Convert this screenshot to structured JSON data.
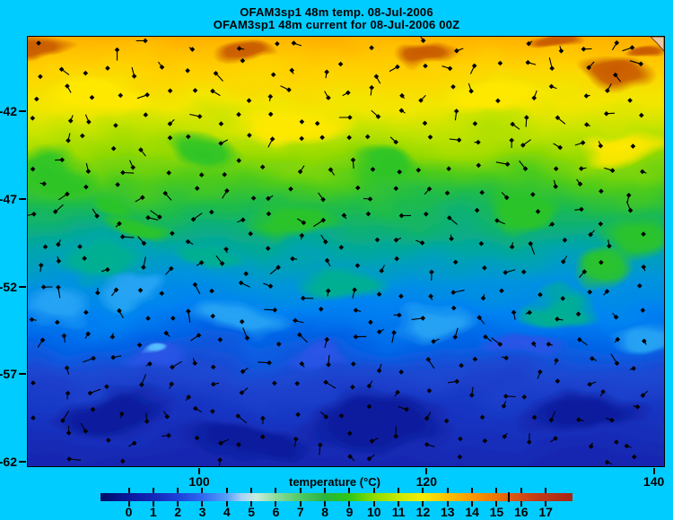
{
  "titles": {
    "line1": "OFAM3sp1 48m temp. 08-Jul-2006",
    "line2": "OFAM3sp1 48m current for 08-Jul-2006 00Z"
  },
  "background_color": "#00ccff",
  "map": {
    "y_axis": {
      "ticks": [
        {
          "label": "-42",
          "lat": -42
        },
        {
          "label": "-47",
          "lat": -47
        },
        {
          "label": "-52",
          "lat": -52
        },
        {
          "label": "-57",
          "lat": -57
        },
        {
          "label": "-62",
          "lat": -62
        }
      ]
    },
    "x_axis": {
      "ticks": [
        {
          "label": "100",
          "lon": 100
        },
        {
          "label": "120",
          "lon": 120
        },
        {
          "label": "140",
          "lon": 140
        }
      ]
    },
    "land_color": "#e8c8a0"
  },
  "colorbar": {
    "label": "temperature (°C)",
    "tick_labels": [
      "0",
      "1",
      "2",
      "3",
      "4",
      "5",
      "6",
      "7",
      "8",
      "9",
      "10",
      "11",
      "12",
      "13",
      "14",
      "15",
      "16",
      "17"
    ],
    "marker_value": 15.5,
    "value_range": [
      -1.2,
      18.1
    ],
    "stops": [
      {
        "v": -1.15,
        "c": "#000d66"
      },
      {
        "v": 0,
        "c": "#0a1a9c"
      },
      {
        "v": 1,
        "c": "#1428b8"
      },
      {
        "v": 2,
        "c": "#1e40d8"
      },
      {
        "v": 3,
        "c": "#2e68f0"
      },
      {
        "v": 4,
        "c": "#55a0f8"
      },
      {
        "v": 4.6,
        "c": "#a8d0f8"
      },
      {
        "v": 5.2,
        "c": "#c8ecdc"
      },
      {
        "v": 6,
        "c": "#8cdc9c"
      },
      {
        "v": 7,
        "c": "#50c864"
      },
      {
        "v": 8,
        "c": "#28b43c"
      },
      {
        "v": 9,
        "c": "#30c814"
      },
      {
        "v": 10,
        "c": "#8cdc00"
      },
      {
        "v": 11,
        "c": "#c8e800"
      },
      {
        "v": 12,
        "c": "#f8ec00"
      },
      {
        "v": 13,
        "c": "#fcc000"
      },
      {
        "v": 14,
        "c": "#fc9800"
      },
      {
        "v": 15,
        "c": "#ec7400"
      },
      {
        "v": 15.5,
        "c": "#e05c10"
      },
      {
        "v": 16.5,
        "c": "#c83c14"
      },
      {
        "v": 18,
        "c": "#a82814"
      }
    ]
  },
  "chart_data": {
    "type": "heatmap",
    "title": "OFAM3sp1 48m temp. 08-Jul-2006",
    "subtitle": "OFAM3sp1 48m current for 08-Jul-2006 00Z",
    "x_ticks": [
      100,
      120,
      140
    ],
    "x_range_lon_east": [
      84.9,
      141.1
    ],
    "y_ticks": [
      -42,
      -47,
      -52,
      -57,
      -62
    ],
    "y_range_lat": [
      -62.3,
      -37.7
    ],
    "colorbar": {
      "label": "temperature (°C)",
      "ticks": [
        0,
        1,
        2,
        3,
        4,
        5,
        6,
        7,
        8,
        9,
        10,
        11,
        12,
        13,
        14,
        15,
        16,
        17
      ],
      "range": [
        -1.2,
        18.1
      ],
      "marker_value": 15.5
    },
    "approx_zonal_mean_temp_by_lat": {
      "-38": 15.5,
      "-40": 13.5,
      "-42": 12,
      "-44": 10.5,
      "-46": 9,
      "-48": 7.5,
      "-50": 6,
      "-52": 4.5,
      "-54": 3.5,
      "-56": 3,
      "-58": 2.5,
      "-60": 2.2,
      "-62": 2
    },
    "field_description": "Sea temperature at 48m: warm (15-17C, orange/brown) in the north grading through yellow and green mid-latitude eddy band to cold (1-3C, dark blue) in the south; mesoscale eddies along the fronts; small land wedge at top-right corner.",
    "overlay": "48m current vectors drawn as black diamond dots with short direction tails on a ~2-degree grid",
    "legend_position": "bottom colorbar",
    "grid": false
  }
}
